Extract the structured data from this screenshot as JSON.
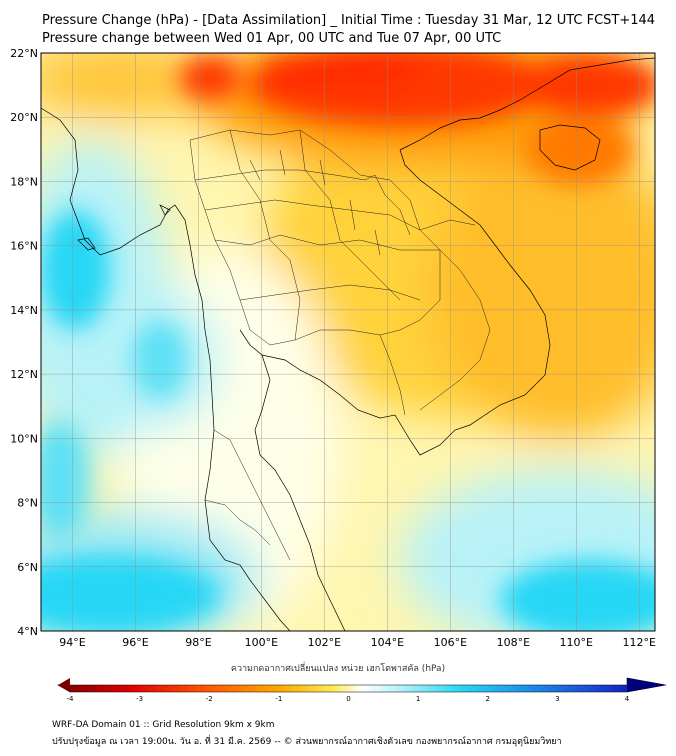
{
  "header": {
    "title": "Pressure Change (hPa) - [Data Assimilation] _ Initial Time : Tuesday 31 Mar, 12 UTC FCST+144",
    "subtitle": "Pressure change between Wed 01 Apr, 00 UTC and Tue 07 Apr, 00 UTC"
  },
  "map": {
    "lat_ticks": [
      "4°N",
      "6°N",
      "8°N",
      "10°N",
      "12°N",
      "14°N",
      "16°N",
      "18°N",
      "20°N",
      "22°N"
    ],
    "lon_ticks": [
      "94°E",
      "96°E",
      "98°E",
      "100°E",
      "102°E",
      "104°E",
      "106°E",
      "108°E",
      "110°E",
      "112°E"
    ],
    "lat_range": [
      4,
      22
    ],
    "lon_range": [
      93,
      112.5
    ],
    "colors": {
      "strong_fall": "#e00000",
      "moderate_fall": "#ff9a00",
      "weak_fall": "#ffe94a",
      "neutral": "#ffffff",
      "weak_rise": "#b8f2f8",
      "moderate_rise": "#28d7f5"
    }
  },
  "colorbar": {
    "label": "ความกดอากาศเปลี่ยนแปลง หน่วย เฮกโตพาสคัล (hPa)",
    "ticks": [
      "-4",
      "-3",
      "-2",
      "-1",
      "0",
      "1",
      "2",
      "3",
      "4"
    ],
    "range": [
      -4,
      4
    ]
  },
  "footer": {
    "line1": "WRF-DA Domain 01 :: Grid Resolution 9km x 9km",
    "line2": "ปรับปรุงข้อมูล ณ เวลา 19:00น. วัน อ. ที่ 31 มี.ค. 2569 -- © ส่วนพยากรณ์อากาศเชิงตัวเลข กองพยากรณ์อากาศ กรมอุตุนิยมวิทยา"
  }
}
